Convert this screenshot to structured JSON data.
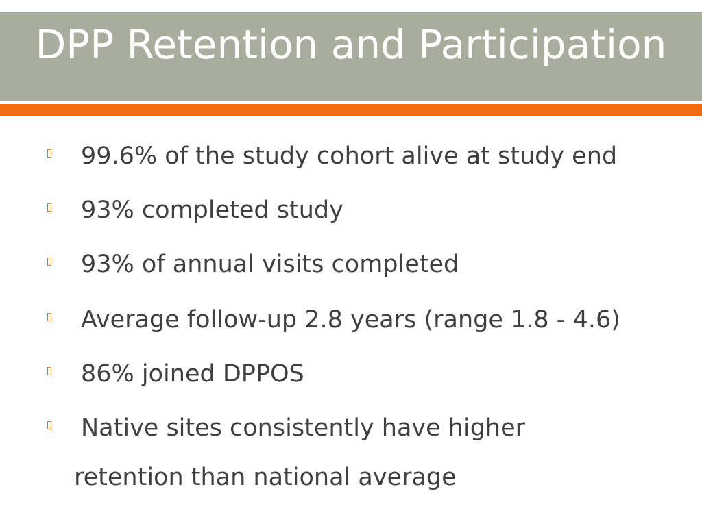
{
  "slide": {
    "title": "DPP Retention and Participation",
    "bullets": [
      {
        "text": "99.6% of the study cohort alive at study end"
      },
      {
        "text": "93% completed study"
      },
      {
        "text": "93% of annual visits completed"
      },
      {
        "text": "Average follow-up 2.8 years (range 1.8 - 4.6)"
      },
      {
        "text": "86% joined DPPOS"
      },
      {
        "text": "Native sites consistently have higher",
        "continuation": "retention than national average"
      }
    ]
  },
  "colors": {
    "title_band": "#a9ad9d",
    "accent": "#f26b10",
    "title_text": "#ffffff",
    "body_text": "#404040"
  }
}
